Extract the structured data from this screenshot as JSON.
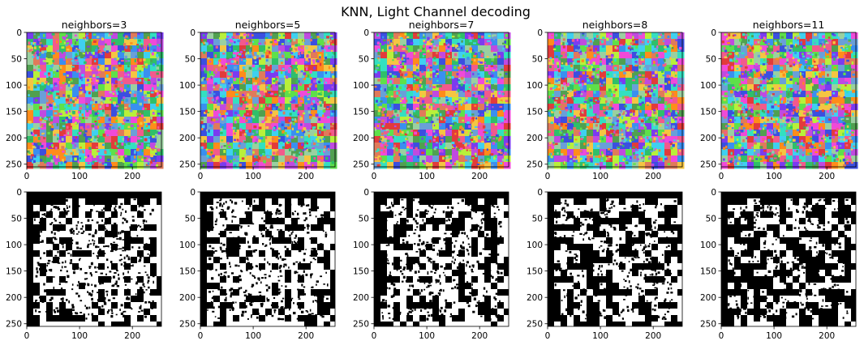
{
  "figure": {
    "title": "KNN, Light Channel decoding",
    "background": "#ffffff"
  },
  "chart_data": {
    "type": "heatmap",
    "layout": "grid-2x5",
    "title": "KNN, Light Channel decoding",
    "xlim": [
      0,
      255
    ],
    "ylim": [
      255,
      0
    ],
    "x_ticks": [
      0,
      100,
      200
    ],
    "y_ticks": [
      0,
      50,
      100,
      150,
      200,
      250
    ],
    "grid": false,
    "columns": [
      {
        "title": "neighbors=3",
        "k": 3
      },
      {
        "title": "neighbors=5",
        "k": 5
      },
      {
        "title": "neighbors=7",
        "k": 7
      },
      {
        "title": "neighbors=8",
        "k": 8
      },
      {
        "title": "neighbors=11",
        "k": 11
      }
    ],
    "rows": [
      {
        "content": "segmentation map (random colors per cluster)"
      },
      {
        "content": "binary mask (white on black)"
      }
    ],
    "colors": {
      "mask_foreground": "#ffffff",
      "mask_background": "#000000",
      "segment_palette": [
        "#e23b3b",
        "#f25a8c",
        "#ff8c1a",
        "#f5c542",
        "#b8f03a",
        "#5ee04a",
        "#2fbf6a",
        "#33e0c0",
        "#3fd0f0",
        "#3a8ff0",
        "#3b4fe0",
        "#7b3bf0",
        "#c04ae0",
        "#f04ad8",
        "#9ad0a0",
        "#e07a5a",
        "#6a9fd8",
        "#50a050"
      ]
    }
  }
}
